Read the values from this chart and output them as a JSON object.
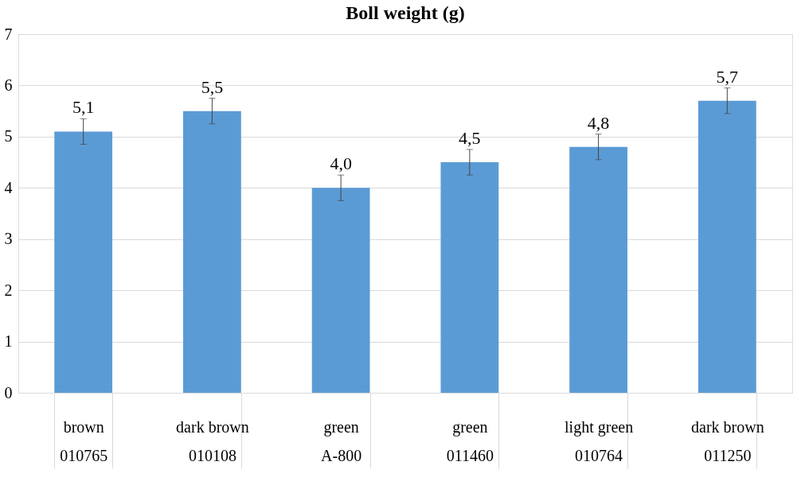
{
  "chart_data": {
    "type": "bar",
    "title": "Boll weight (g)",
    "categories": [
      "brown\n010765",
      "dark brown\n010108",
      "green\nA-800",
      "green\n011460",
      "light green\n010764",
      "dark brown\n011250"
    ],
    "values": [
      5.1,
      5.5,
      4.0,
      4.5,
      4.8,
      5.7
    ],
    "errors": [
      0.25,
      0.25,
      0.25,
      0.25,
      0.25,
      0.25
    ],
    "value_labels": [
      "5,1",
      "5,5",
      "4,0",
      "4,5",
      "4,8",
      "5,7"
    ],
    "color": "#5b9bd5",
    "ylim": [
      0,
      7
    ],
    "yticks": [
      0,
      1,
      2,
      3,
      4,
      5,
      6,
      7
    ],
    "grid": "y"
  }
}
